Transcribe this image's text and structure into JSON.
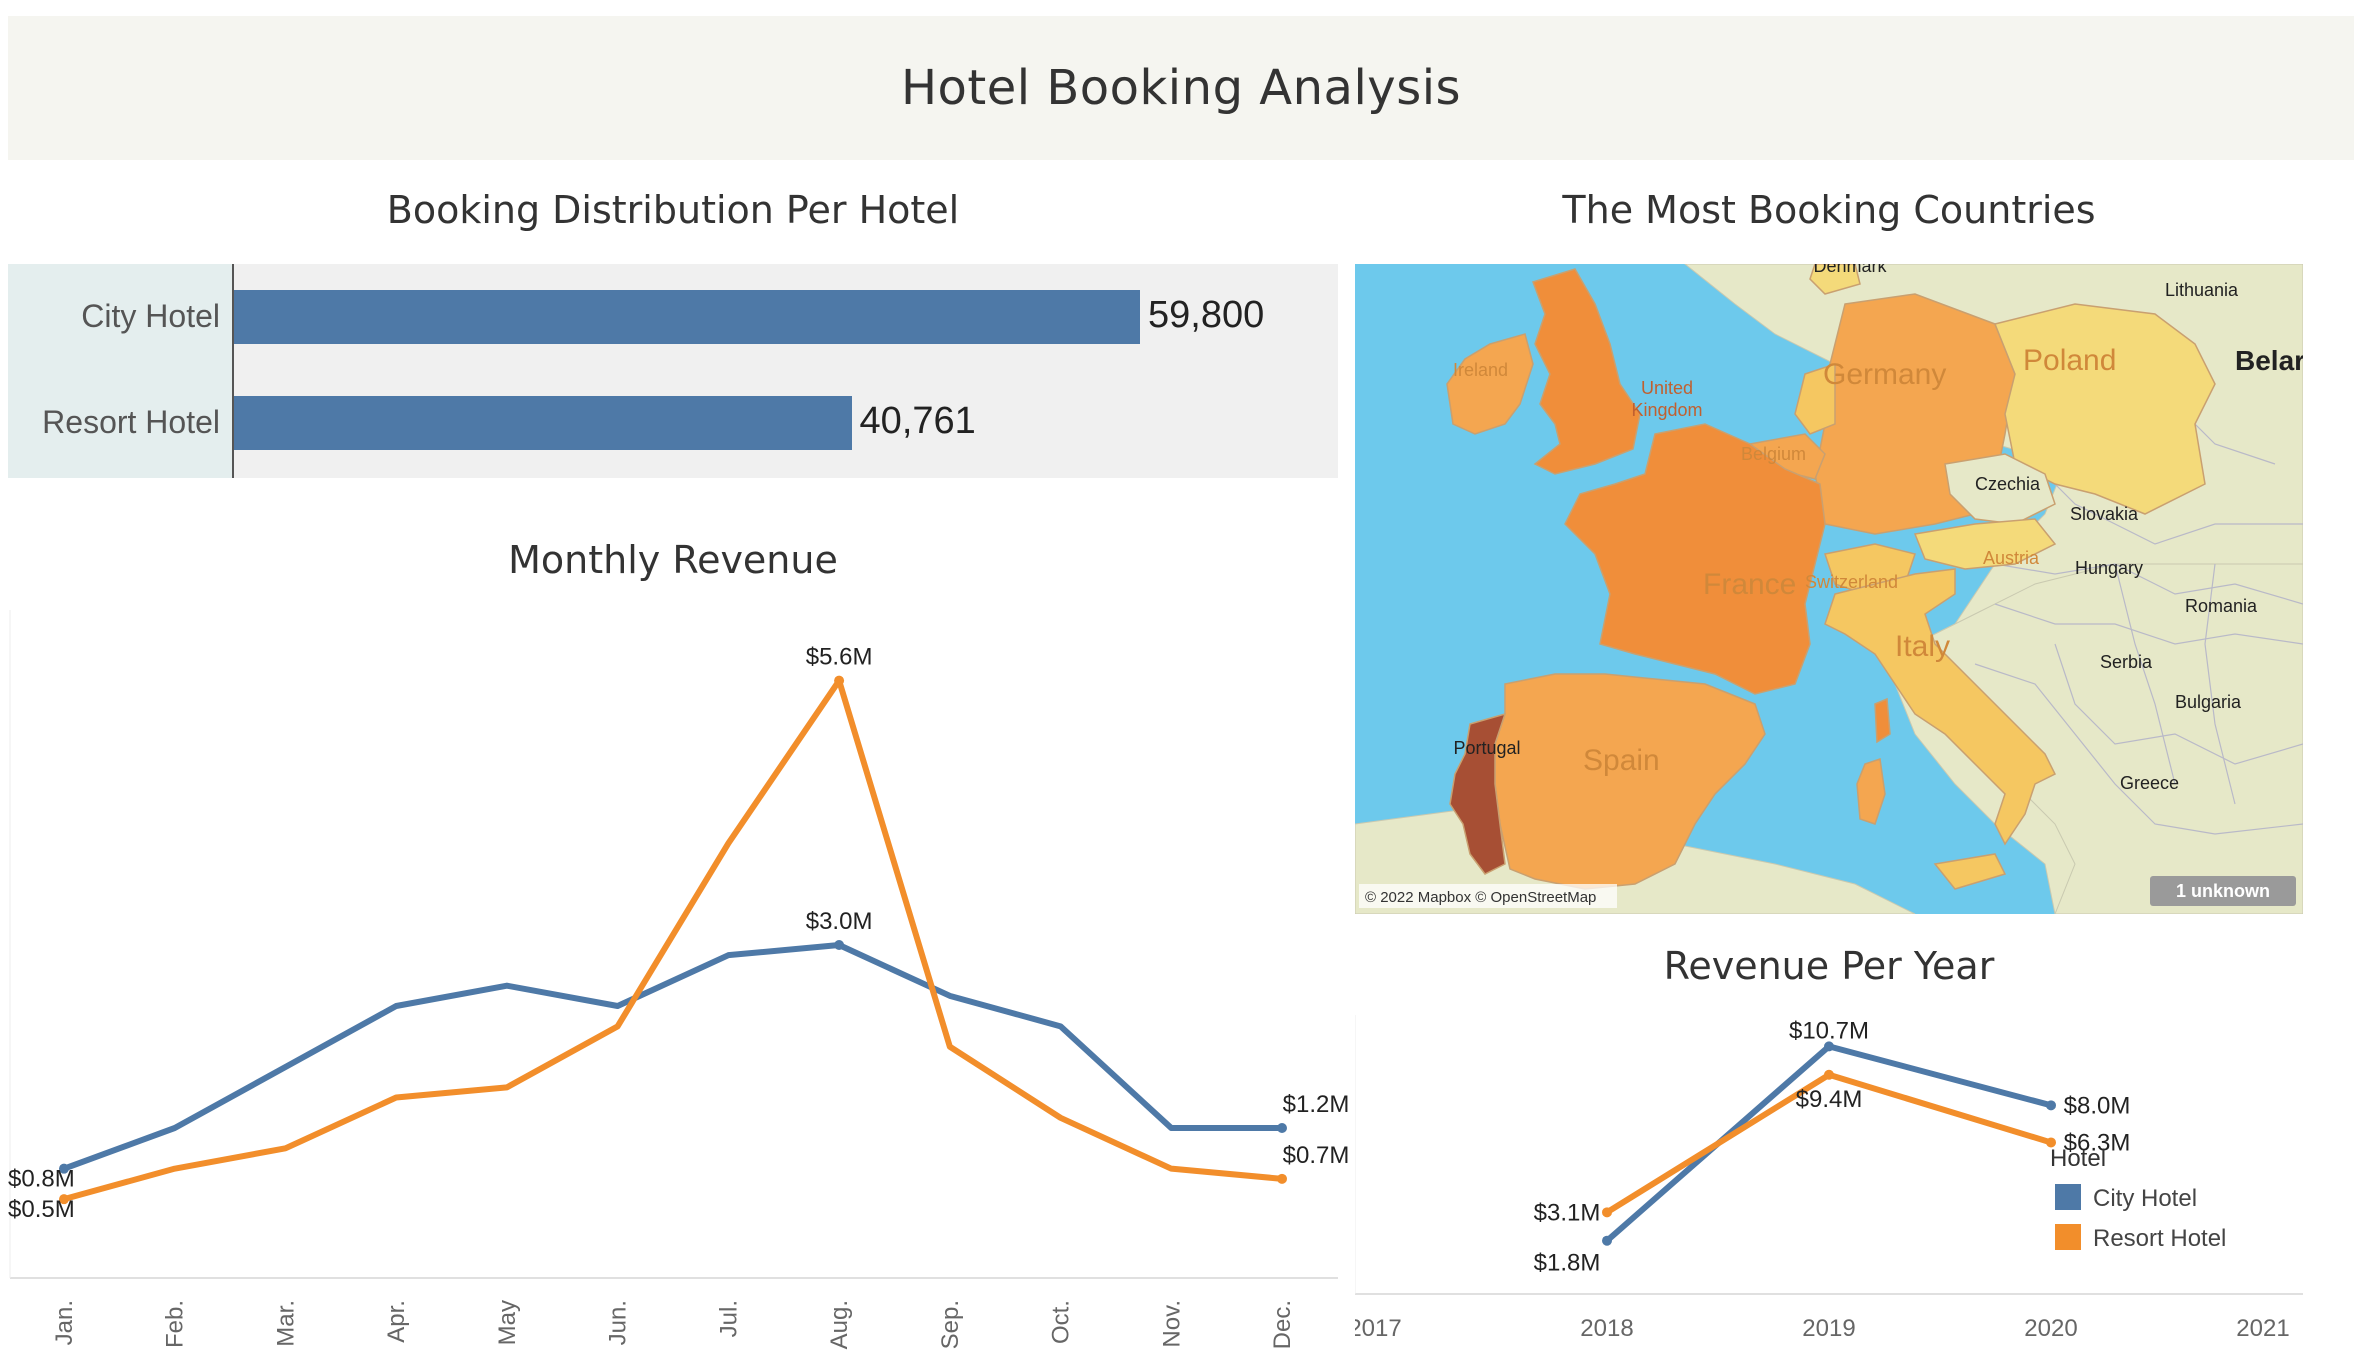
{
  "dashboard": {
    "title": "Hotel Booking Analysis"
  },
  "booking_distribution": {
    "title": "Booking Distribution Per Hotel",
    "rows": [
      {
        "label": "City Hotel",
        "value": 59800,
        "display": "59,800"
      },
      {
        "label": "Resort Hotel",
        "value": 40761,
        "display": "40,761"
      }
    ],
    "bar_color": "#4e79a7"
  },
  "countries_map": {
    "title": "The Most Booking Countries",
    "attribution": "© 2022 Mapbox © OpenStreetMap",
    "unknown_badge": "1 unknown",
    "country_labels": {
      "denmark": "Denmark",
      "lithuania": "Lithuania",
      "belarus": "Belar",
      "ireland": "Ireland",
      "uk": "United\nKingdom",
      "poland": "Poland",
      "germany": "Germany",
      "belgium": "Belgium",
      "czechia": "Czechia",
      "slovakia": "Slovakia",
      "austria": "Austria",
      "hungary": "Hungary",
      "france": "France",
      "switzerland": "Switzerland",
      "romania": "Romania",
      "italy": "Italy",
      "serbia": "Serbia",
      "bulgaria": "Bulgaria",
      "portugal": "Portugal",
      "spain": "Spain",
      "greece": "Greece"
    },
    "colors": {
      "sea": "#6dc9ec",
      "land": "#e6e8c8",
      "highest": "#a74f34",
      "high": "#f08e3a",
      "medium": "#f4a650",
      "low": "#f5c761",
      "lowest": "#f4da7a"
    }
  },
  "monthly_revenue": {
    "title": "Monthly Revenue",
    "chart_data": {
      "type": "line",
      "title": "Monthly Revenue",
      "categories": [
        "Jan.",
        "Feb.",
        "Mar.",
        "Apr.",
        "May",
        "Jun.",
        "Jul.",
        "Aug.",
        "Sep.",
        "Oct.",
        "Nov.",
        "Dec."
      ],
      "series": [
        {
          "name": "City Hotel",
          "color": "#4e79a7",
          "values": [
            0.8,
            1.2,
            1.8,
            2.4,
            2.6,
            2.4,
            2.9,
            3.0,
            2.5,
            2.2,
            1.2,
            1.2
          ]
        },
        {
          "name": "Resort Hotel",
          "color": "#f28e2b",
          "values": [
            0.5,
            0.8,
            1.0,
            1.5,
            1.6,
            2.2,
            4.0,
            5.6,
            2.0,
            1.3,
            0.8,
            0.7
          ]
        }
      ],
      "point_labels": [
        {
          "series": 0,
          "index": 0,
          "text": "$0.8M"
        },
        {
          "series": 1,
          "index": 0,
          "text": "$0.5M"
        },
        {
          "series": 1,
          "index": 7,
          "text": "$5.6M"
        },
        {
          "series": 0,
          "index": 7,
          "text": "$3.0M"
        },
        {
          "series": 0,
          "index": 11,
          "text": "$1.2M"
        },
        {
          "series": 1,
          "index": 11,
          "text": "$0.7M"
        }
      ],
      "ylim": [
        0,
        6
      ],
      "grid": false
    }
  },
  "revenue_per_year": {
    "title": "Revenue Per Year",
    "legend": {
      "title": "Hotel",
      "items": [
        {
          "label": "City Hotel",
          "color": "#4e79a7"
        },
        {
          "label": "Resort Hotel",
          "color": "#f28e2b"
        }
      ]
    },
    "chart_data": {
      "type": "line",
      "title": "Revenue Per Year",
      "x": [
        2017,
        2018,
        2019,
        2020,
        2021
      ],
      "tick_labels": [
        "2017",
        "2018",
        "2019",
        "2020",
        "2021"
      ],
      "series": [
        {
          "name": "City Hotel",
          "color": "#4e79a7",
          "x": [
            2018,
            2019,
            2020
          ],
          "values": [
            1.8,
            10.7,
            8.0
          ],
          "labels": [
            "$1.8M",
            "$10.7M",
            "$8.0M"
          ]
        },
        {
          "name": "Resort Hotel",
          "color": "#f28e2b",
          "x": [
            2018,
            2019,
            2020
          ],
          "values": [
            3.1,
            9.4,
            6.3
          ],
          "labels": [
            "$3.1M",
            "$9.4M",
            "$6.3M"
          ]
        }
      ],
      "xlim": [
        2017,
        2021
      ],
      "ylim": [
        0,
        12
      ],
      "legend_position": "right"
    }
  }
}
